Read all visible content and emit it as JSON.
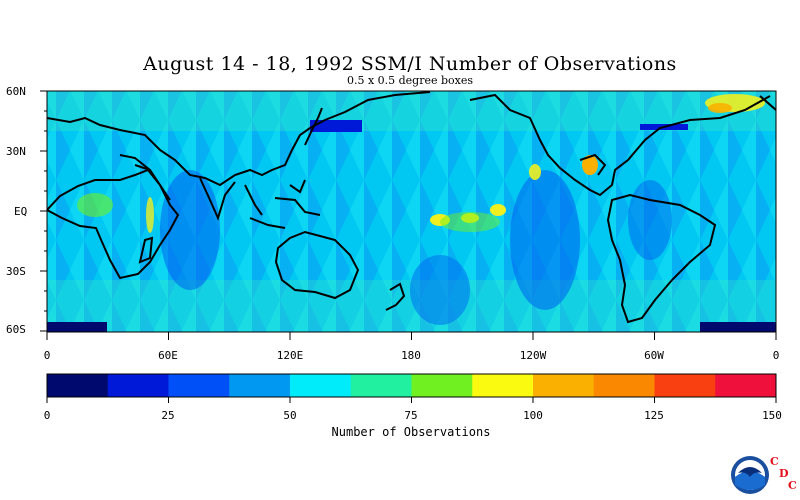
{
  "title": "August 14 - 18, 1992 SSM/I Number of Observations",
  "subtitle": "0.5 x 0.5 degree boxes",
  "lat_labels": [
    "60N",
    "30N",
    "EQ",
    "30S",
    "60S"
  ],
  "lon_labels": [
    "0",
    "60E",
    "120E",
    "180",
    "120W",
    "60W",
    "0"
  ],
  "colorbar": {
    "title": "Number of Observations",
    "tick_labels": [
      "0",
      "25",
      "50",
      "75",
      "100",
      "125",
      "150"
    ],
    "colors": [
      "#000a6e",
      "#0018d8",
      "#0050f8",
      "#0098f0",
      "#00ecfa",
      "#20f0a0",
      "#70f020",
      "#fafa10",
      "#fab000",
      "#fa8800",
      "#f84010",
      "#f0103c"
    ]
  },
  "map": {
    "background_color": "#00c8f0",
    "land_color": "#30d0e8",
    "coastline_color": "#000000"
  },
  "logo": {
    "name": "NOAA",
    "letters": [
      "C",
      "D",
      "C"
    ]
  }
}
